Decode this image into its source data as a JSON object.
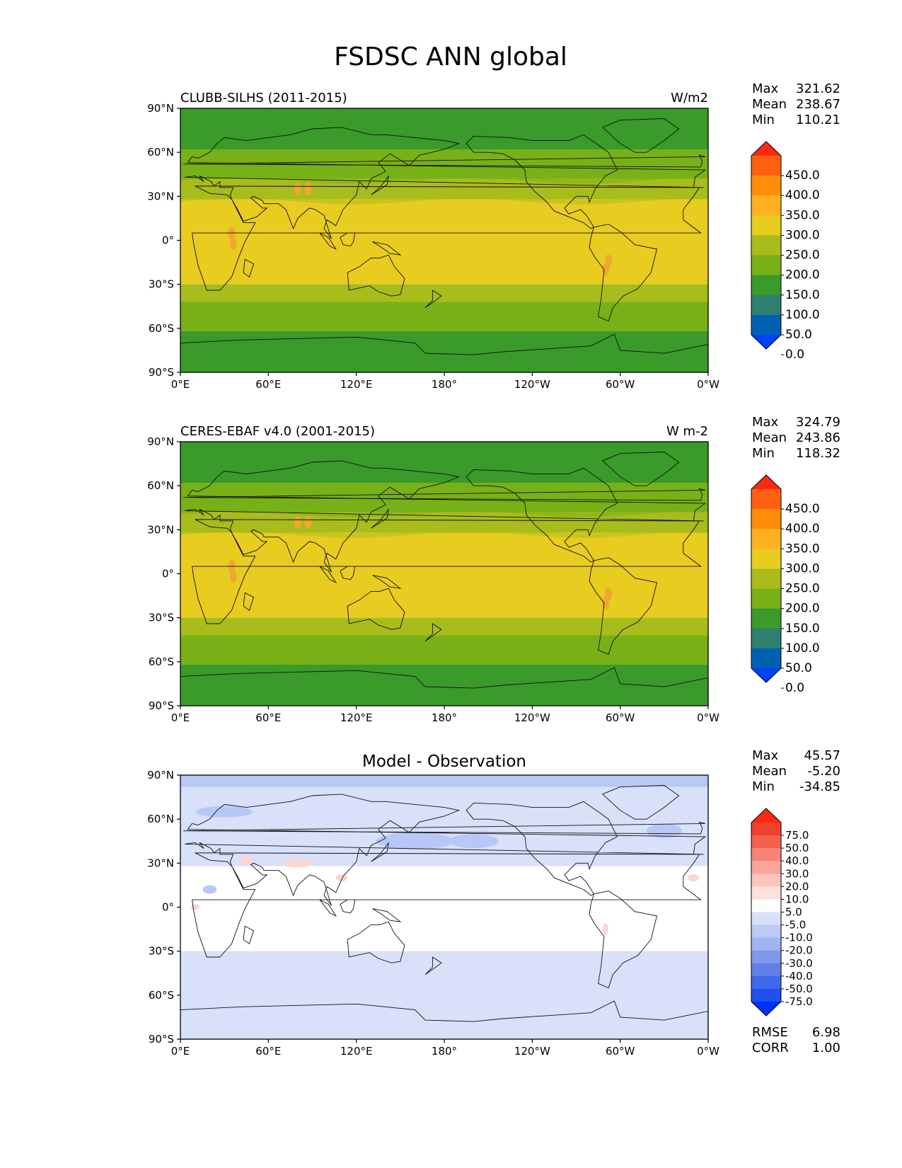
{
  "figure": {
    "title": "FSDSC ANN global"
  },
  "axes": {
    "lat_ticks": [
      "90°N",
      "60°N",
      "30°N",
      "0°",
      "30°S",
      "60°S",
      "90°S"
    ],
    "lon_ticks": [
      "0°E",
      "60°E",
      "120°E",
      "180°",
      "120°W",
      "60°W",
      "0°W"
    ]
  },
  "panels": [
    {
      "id": "test",
      "left_title": "CLUBB-SILHS (2011-2015)",
      "right_title": "W/m2",
      "center_title": "",
      "stats": [
        {
          "label": "Max",
          "value": "321.62"
        },
        {
          "label": "Mean",
          "value": "238.67"
        },
        {
          "label": "Min",
          "value": "110.21"
        }
      ],
      "colorbar": {
        "labels": [
          "450.0",
          "400.0",
          "350.0",
          "300.0",
          "250.0",
          "200.0",
          "150.0",
          "100.0",
          "50.0",
          "0.0"
        ],
        "colors": [
          "#0040ff",
          "#0060b0",
          "#2f8070",
          "#3a9a2a",
          "#78b018",
          "#a8bc1c",
          "#e8cc20",
          "#ffb020",
          "#ff8c0a",
          "#ff6010",
          "#ff2810"
        ]
      }
    },
    {
      "id": "reference",
      "left_title": "CERES-EBAF v4.0 (2001-2015)",
      "right_title": "W m-2",
      "center_title": "",
      "stats": [
        {
          "label": "Max",
          "value": "324.79"
        },
        {
          "label": "Mean",
          "value": "243.86"
        },
        {
          "label": "Min",
          "value": "118.32"
        }
      ],
      "colorbar": {
        "labels": [
          "450.0",
          "400.0",
          "350.0",
          "300.0",
          "250.0",
          "200.0",
          "150.0",
          "100.0",
          "50.0",
          "0.0"
        ],
        "colors": [
          "#0040ff",
          "#0060b0",
          "#2f8070",
          "#3a9a2a",
          "#78b018",
          "#a8bc1c",
          "#e8cc20",
          "#ffb020",
          "#ff8c0a",
          "#ff6010",
          "#ff2810"
        ]
      }
    },
    {
      "id": "diff",
      "left_title": "",
      "right_title": "",
      "center_title": "Model - Observation",
      "stats": [
        {
          "label": "Max",
          "value": "45.57"
        },
        {
          "label": "Mean",
          "value": "-5.20"
        },
        {
          "label": "Min",
          "value": "-34.85"
        }
      ],
      "colorbar": {
        "labels": [
          "75.0",
          "50.0",
          "40.0",
          "30.0",
          "20.0",
          "10.0",
          "5.0",
          "-5.0",
          "-10.0",
          "-20.0",
          "-30.0",
          "-40.0",
          "-50.0",
          "-75.0"
        ],
        "colors": [
          "#0030ff",
          "#2050f0",
          "#4068e8",
          "#6080e8",
          "#8098ec",
          "#a0b4f2",
          "#bccaf6",
          "#d8e0fa",
          "#ffffff",
          "#fde0dc",
          "#fcc4bc",
          "#faa49a",
          "#f88478",
          "#f46050",
          "#f04030",
          "#ff2810"
        ]
      },
      "error_stats": [
        {
          "label": "RMSE",
          "value": "6.98"
        },
        {
          "label": "CORR",
          "value": "1.00"
        }
      ]
    }
  ],
  "colors": {
    "test_bands": [
      "#3a9a2a",
      "#78b018",
      "#a8bc1c",
      "#e8cc20",
      "#e8cc20",
      "#a8bc1c",
      "#78b018",
      "#3a9a2a"
    ],
    "diff_base": "#ffffff",
    "diff_negative": "#d8e0fa",
    "diff_stronger_negative": "#b8c8f6",
    "diff_positive": "#fcd6d0"
  }
}
